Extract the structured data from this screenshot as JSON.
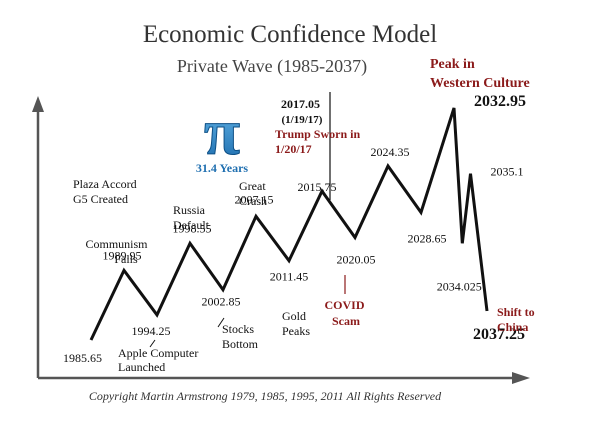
{
  "chart_data": {
    "type": "line",
    "title": "Economic Confidence Model",
    "subtitle": "Private Wave (1985-2037)",
    "xlabel": "",
    "ylabel": "",
    "grid": false,
    "legend": "none",
    "pi_symbol": "π",
    "pi_caption": "31.4 Years",
    "points": [
      {
        "x": 1985.65,
        "y": 0.0,
        "label": "1985.65"
      },
      {
        "x": 1989.95,
        "y": 3.6,
        "label": "1989.95"
      },
      {
        "x": 1994.25,
        "y": 1.3,
        "label": "1994.25"
      },
      {
        "x": 1998.55,
        "y": 5.0,
        "label": "1998.55"
      },
      {
        "x": 2002.85,
        "y": 2.6,
        "label": "2002.85"
      },
      {
        "x": 2007.15,
        "y": 6.4,
        "label": "2007.15"
      },
      {
        "x": 2011.45,
        "y": 4.1,
        "label": "2011.45"
      },
      {
        "x": 2015.75,
        "y": 7.7,
        "label": "2015.75"
      },
      {
        "x": 2020.05,
        "y": 5.3,
        "label": "2020.05"
      },
      {
        "x": 2024.35,
        "y": 9.0,
        "label": "2024.35"
      },
      {
        "x": 2028.65,
        "y": 6.6,
        "label": "2028.65"
      },
      {
        "x": 2032.95,
        "y": 12.0,
        "label": "2032.95"
      },
      {
        "x": 2034.025,
        "y": 5.0,
        "label": "2034.025"
      },
      {
        "x": 2035.1,
        "y": 8.6,
        "label": "2035.1"
      },
      {
        "x": 2037.25,
        "y": 1.5,
        "label": "2037.25"
      }
    ],
    "annotations": {
      "plaza": [
        "Plaza Accord",
        "G5 Created"
      ],
      "communism": [
        "Communism",
        "Falls"
      ],
      "russia": [
        "Russia",
        "Default"
      ],
      "great_crash": [
        "Great",
        "Crash"
      ],
      "apple": [
        "Apple Computer",
        "Launched"
      ],
      "stocks": [
        "Stocks",
        "Bottom"
      ],
      "gold": [
        "Gold",
        "Peaks"
      ],
      "trump_date": [
        "2017.05",
        "(1/19/17)"
      ],
      "trump": [
        "Trump Sworn in",
        "1/20/17"
      ],
      "covid": [
        "COVID",
        "Scam"
      ],
      "peak": [
        "Peak in",
        "Western Culture"
      ],
      "china": [
        "Shift to",
        "China"
      ]
    },
    "colors": {
      "line": "#111111",
      "text": "#111111",
      "title": "#333333",
      "accent_red": "#8b1a1a",
      "pi_blue": "#1f7fc0"
    }
  },
  "copyright": "Copyright Martin Armstrong 1979, 1985, 1995, 2011 All Rights Reserved"
}
